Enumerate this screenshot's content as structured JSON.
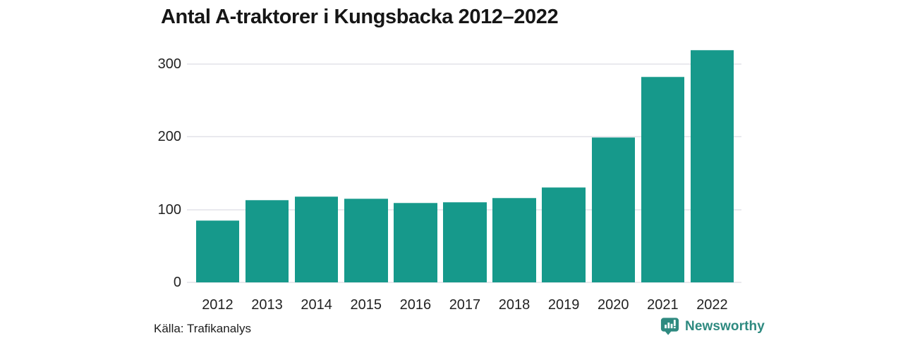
{
  "chart_data": {
    "type": "bar",
    "title": "Antal A-traktorer i Kungsbacka 2012–2022",
    "categories": [
      "2012",
      "2013",
      "2014",
      "2015",
      "2016",
      "2017",
      "2018",
      "2019",
      "2020",
      "2021",
      "2022"
    ],
    "values": [
      85,
      113,
      118,
      115,
      109,
      110,
      116,
      131,
      199,
      283,
      319
    ],
    "xlabel": "",
    "ylabel": "",
    "ylim": [
      0,
      320
    ],
    "yticks": [
      0,
      100,
      200,
      300
    ],
    "grid": true,
    "legend_position": "none",
    "bar_color": "#16998b",
    "grid_color": "#e9e9ee",
    "tick_label_color": "#222222",
    "title_color": "#161616"
  },
  "footer": {
    "source_label": "Källa: Trafikanalys",
    "brand_name": "Newsworthy",
    "brand_color": "#2e8a80"
  },
  "icons": {
    "brand_logo": "newsworthy-speech-bubble-bar-chart-icon"
  }
}
